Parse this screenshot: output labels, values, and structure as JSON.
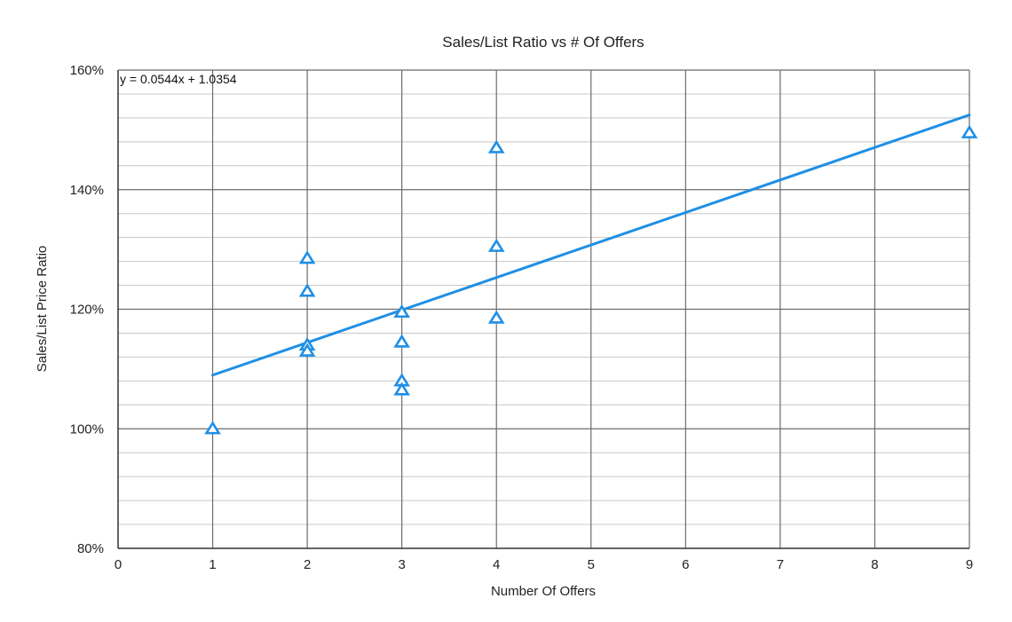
{
  "chart_data": {
    "type": "scatter",
    "title": "Sales/List Ratio vs # Of Offers",
    "xlabel": "Number Of Offers",
    "ylabel": "Sales/List Price Ratio",
    "xlim": [
      0,
      9
    ],
    "ylim": [
      0.8,
      1.6
    ],
    "x_ticks": [
      0,
      1,
      2,
      3,
      4,
      5,
      6,
      7,
      8,
      9
    ],
    "x_tick_labels": [
      "0",
      "1",
      "2",
      "3",
      "4",
      "5",
      "6",
      "7",
      "8",
      "9"
    ],
    "y_ticks": [
      0.8,
      1.0,
      1.2,
      1.4,
      1.6
    ],
    "y_tick_labels": [
      "80%",
      "100%",
      "120%",
      "140%",
      "160%"
    ],
    "y_minor_step": 0.04,
    "grid": true,
    "legend": "none",
    "marker": "open-triangle",
    "series": [
      {
        "x": [
          1,
          2,
          2,
          2,
          2,
          3,
          3,
          3,
          3,
          4,
          4,
          4,
          9
        ],
        "y": [
          1.0,
          1.285,
          1.23,
          1.14,
          1.13,
          1.195,
          1.145,
          1.08,
          1.065,
          1.47,
          1.305,
          1.185,
          1.495
        ]
      }
    ],
    "trendline": {
      "slope": 0.0544,
      "intercept": 1.0354,
      "x_range": [
        1,
        9
      ],
      "equation_label": "y = 0.0544x + 1.0354"
    },
    "colors": {
      "series": "#1f8fe5",
      "trendline": "#1f8fe5"
    }
  }
}
